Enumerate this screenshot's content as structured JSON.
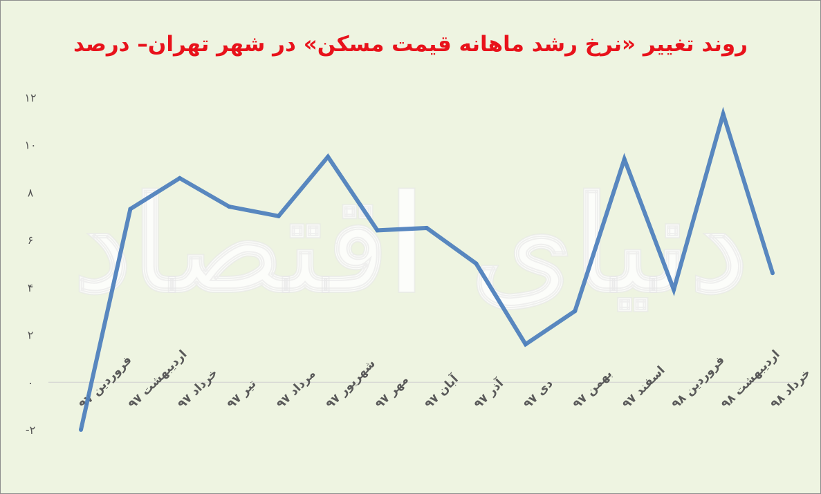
{
  "chart_data": {
    "type": "line",
    "title": "روند تغییر «نرخ رشد ماهانه قیمت مسکن» در شهر تهران– درصد",
    "categories": [
      "فروردین ۹۷",
      "اردیبهشت ۹۷",
      "خرداد ۹۷",
      "تیر ۹۷",
      "مرداد ۹۷",
      "شهریور ۹۷",
      "مهر ۹۷",
      "آبان ۹۷",
      "آذر ۹۷",
      "دی ۹۷",
      "بهمن ۹۷",
      "اسفند ۹۷",
      "فروردین ۹۸",
      "اردیبهشت ۹۸",
      "خرداد ۹۸"
    ],
    "series": [
      {
        "values": [
          -2.0,
          7.3,
          8.6,
          7.4,
          7.0,
          9.5,
          6.4,
          6.5,
          5.0,
          1.6,
          3.0,
          9.4,
          3.9,
          11.3,
          4.6
        ]
      }
    ],
    "y_ticks": [
      "۱۲",
      "۱۰",
      "۸",
      "۶",
      "۴",
      "۲",
      "۰",
      "-۲"
    ],
    "ylim": [
      -2,
      12
    ],
    "grid": false,
    "legend": "none",
    "line_color": "#4f81bd",
    "background_color": "#eef4e1",
    "title_color": "#e8121b",
    "watermark": "دنیای اقتصاد"
  }
}
